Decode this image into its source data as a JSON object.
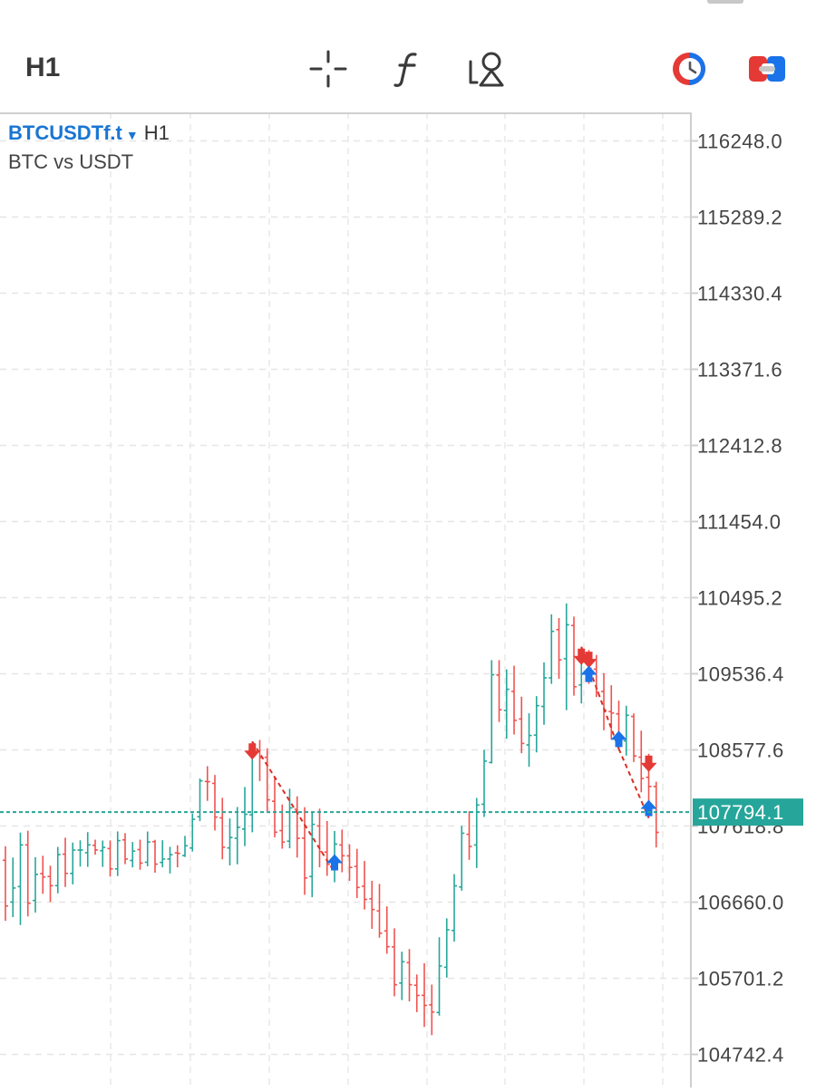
{
  "toolbar": {
    "timeframe": "H1",
    "icons": [
      "crosshair-icon",
      "function-icon",
      "objects-icon",
      "one-click-trading-icon",
      "trade-toggle-icon"
    ]
  },
  "symbol": {
    "name": "BTCUSDTf.t",
    "timeframe": "H1",
    "description": "BTC vs USDT"
  },
  "colors": {
    "up": "#26a69a",
    "down": "#ef5350",
    "buy_arrow": "#1a73e8",
    "sell_arrow": "#e53935",
    "grid": "#e6e6e6",
    "price_line": "#26a69a"
  },
  "chart_data": {
    "type": "ohlc",
    "y_ticks": [
      "116248.0",
      "115289.2",
      "114330.4",
      "113371.6",
      "112412.8",
      "111454.0",
      "110495.2",
      "109536.4",
      "108577.6",
      "107618.8",
      "106660.0",
      "105701.2",
      "104742.4"
    ],
    "ylim": [
      104742.4,
      116248.0
    ],
    "current_price": "107794.1",
    "candles": [
      [
        107188,
        107364,
        106424,
        106612
      ],
      [
        106661,
        107222,
        106472,
        106838
      ],
      [
        106856,
        107536,
        106372,
        107381
      ],
      [
        107381,
        107560,
        106480,
        106646
      ],
      [
        106681,
        107227,
        106529,
        107010
      ],
      [
        107019,
        107244,
        106765,
        106977
      ],
      [
        106983,
        107119,
        106663,
        106868
      ],
      [
        106868,
        107356,
        106771,
        107259
      ],
      [
        107264,
        107472,
        106851,
        107022
      ],
      [
        107022,
        107410,
        106884,
        107316
      ],
      [
        107316,
        107439,
        107108,
        107317
      ],
      [
        107282,
        107542,
        107104,
        107382
      ],
      [
        107376,
        107447,
        107258,
        107318
      ],
      [
        107308,
        107436,
        107104,
        107350
      ],
      [
        107335,
        107438,
        106981,
        107079
      ],
      [
        107079,
        107551,
        106989,
        107435
      ],
      [
        107444,
        107529,
        107138,
        107203
      ],
      [
        107185,
        107417,
        107097,
        107303
      ],
      [
        107322,
        107447,
        107068,
        107152
      ],
      [
        107163,
        107550,
        107112,
        107417
      ],
      [
        107422,
        107445,
        107031,
        107139
      ],
      [
        107160,
        107440,
        107099,
        107203
      ],
      [
        107203,
        107357,
        107021,
        107258
      ],
      [
        107281,
        107377,
        107098,
        107274
      ],
      [
        107247,
        107495,
        107229,
        107370
      ],
      [
        107342,
        107776,
        107297,
        107704
      ],
      [
        107736,
        108217,
        107680,
        108188
      ],
      [
        108180,
        108373,
        107936,
        108177
      ],
      [
        108156,
        108262,
        107562,
        107731
      ],
      [
        107721,
        107974,
        107199,
        107352
      ],
      [
        107343,
        107714,
        107122,
        107474
      ],
      [
        107464,
        107858,
        107137,
        107601
      ],
      [
        107581,
        108110,
        107366,
        107767
      ],
      [
        107760,
        108683,
        107540,
        108566
      ],
      [
        108558,
        108703,
        108185,
        108480
      ],
      [
        108484,
        108598,
        107807,
        107949
      ],
      [
        107931,
        108244,
        107477,
        107541
      ],
      [
        107561,
        107890,
        107333,
        107417
      ],
      [
        107428,
        108088,
        107338,
        107847
      ],
      [
        107830,
        107993,
        107222,
        107464
      ],
      [
        107466,
        107856,
        106752,
        106964
      ],
      [
        106983,
        107796,
        106723,
        107640
      ],
      [
        107620,
        107837,
        107099,
        107297
      ],
      [
        107291,
        107682,
        106991,
        107137
      ],
      [
        107142,
        107556,
        106910,
        107391
      ],
      [
        107380,
        107574,
        107036,
        107244
      ],
      [
        107243,
        107389,
        106928,
        107097
      ],
      [
        107110,
        107331,
        106711,
        106845
      ],
      [
        106860,
        107178,
        106567,
        106694
      ],
      [
        106702,
        106929,
        106324,
        106567
      ],
      [
        106550,
        106890,
        106212,
        106269
      ],
      [
        106298,
        106607,
        106010,
        106099
      ],
      [
        106096,
        106330,
        105474,
        105620
      ],
      [
        105641,
        106036,
        105427,
        105910
      ],
      [
        105898,
        106070,
        105409,
        105620
      ],
      [
        105613,
        105749,
        105274,
        105484
      ],
      [
        105486,
        105890,
        105088,
        105359
      ],
      [
        105367,
        105622,
        104985,
        105276
      ],
      [
        105270,
        106218,
        105231,
        105856
      ],
      [
        105840,
        106456,
        105710,
        106312
      ],
      [
        106303,
        107013,
        106163,
        106866
      ],
      [
        106851,
        107620,
        106804,
        107528
      ],
      [
        107514,
        107805,
        107193,
        107362
      ],
      [
        107380,
        107973,
        107089,
        107883
      ],
      [
        107893,
        108578,
        107733,
        108436
      ],
      [
        108419,
        109708,
        108406,
        109525
      ],
      [
        109520,
        109708,
        108929,
        109083
      ],
      [
        109075,
        109590,
        108719,
        109341
      ],
      [
        109314,
        109638,
        108771,
        108950
      ],
      [
        108967,
        109248,
        108536,
        108659
      ],
      [
        108640,
        109039,
        108365,
        108759
      ],
      [
        108764,
        109255,
        108546,
        109135
      ],
      [
        109125,
        109680,
        108894,
        109485
      ],
      [
        109485,
        110285,
        109409,
        110071
      ],
      [
        110092,
        110238,
        109473,
        109712
      ],
      [
        109726,
        110422,
        109078,
        110154
      ],
      [
        110144,
        110257,
        109261,
        109373
      ],
      [
        109395,
        109876,
        109162,
        109765
      ],
      [
        109760,
        109837,
        109409,
        109607
      ],
      [
        109594,
        109773,
        109243,
        109305
      ],
      [
        109313,
        109545,
        108825,
        109075
      ],
      [
        109060,
        109392,
        108712,
        109042
      ],
      [
        109031,
        109198,
        108591,
        108688
      ],
      [
        108691,
        109134,
        108506,
        109014
      ],
      [
        108999,
        109038,
        108425,
        108501
      ],
      [
        108486,
        108820,
        108044,
        108218
      ],
      [
        108233,
        108529,
        107720,
        108117
      ],
      [
        108117,
        108176,
        107349,
        107539
      ]
    ],
    "signals": [
      {
        "type": "sell",
        "index": 33,
        "price": 108683
      },
      {
        "type": "buy",
        "index": 44,
        "price": 107036
      },
      {
        "type": "sell",
        "index": 77,
        "price": 109876
      },
      {
        "type": "sell",
        "index": 78,
        "price": 109837
      },
      {
        "type": "buy",
        "index": 78,
        "price": 109409
      },
      {
        "type": "buy",
        "index": 82,
        "price": 108591
      },
      {
        "type": "sell",
        "index": 86,
        "price": 108529
      },
      {
        "type": "buy",
        "index": 86,
        "price": 107720
      }
    ],
    "trade_lines": [
      {
        "from": {
          "index": 33,
          "price": 108683
        },
        "to": {
          "index": 44,
          "price": 107036
        }
      },
      {
        "from": {
          "index": 77,
          "price": 109876
        },
        "to": {
          "index": 82,
          "price": 108591
        }
      },
      {
        "from": {
          "index": 82,
          "price": 108591
        },
        "to": {
          "index": 86,
          "price": 107720
        }
      }
    ]
  }
}
